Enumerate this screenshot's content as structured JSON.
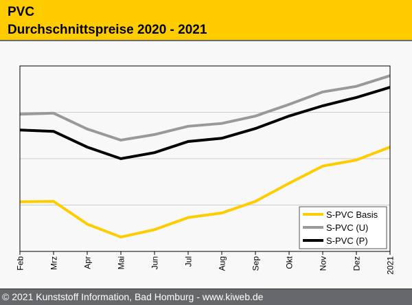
{
  "header": {
    "title": "PVC",
    "subtitle": "Durchschnittspreise 2020 - 2021",
    "background": "#ffcc00"
  },
  "footer": {
    "text": "© 2021 Kunststoff Information, Bad Homburg - www.kiweb.de"
  },
  "chart_data": {
    "type": "line",
    "title": "PVC Durchschnittspreise 2020 - 2021",
    "xlabel": "",
    "ylabel": "",
    "categories": [
      "Feb",
      "Mrz",
      "Apr",
      "Mai",
      "Jun",
      "Jul",
      "Aug",
      "Sep",
      "Okt",
      "Nov",
      "Dez",
      "2021"
    ],
    "ylim": [
      0,
      4
    ],
    "y_gridlines": [
      1,
      2,
      3
    ],
    "y_tick_labels_shown": false,
    "grid": true,
    "legend_position": "bottom-right",
    "series": [
      {
        "name": "S-PVC Basis",
        "color": "#ffcc00",
        "values": [
          1.07,
          1.08,
          0.59,
          0.31,
          0.47,
          0.73,
          0.83,
          1.08,
          1.47,
          1.84,
          1.97,
          2.25
        ]
      },
      {
        "name": "S-PVC (U)",
        "color": "#999999",
        "values": [
          2.96,
          2.98,
          2.64,
          2.4,
          2.52,
          2.7,
          2.76,
          2.92,
          3.17,
          3.44,
          3.56,
          3.79
        ]
      },
      {
        "name": "S-PVC (P)",
        "color": "#000000",
        "values": [
          2.62,
          2.59,
          2.25,
          2.0,
          2.13,
          2.37,
          2.44,
          2.65,
          2.92,
          3.14,
          3.32,
          3.54
        ]
      }
    ]
  }
}
